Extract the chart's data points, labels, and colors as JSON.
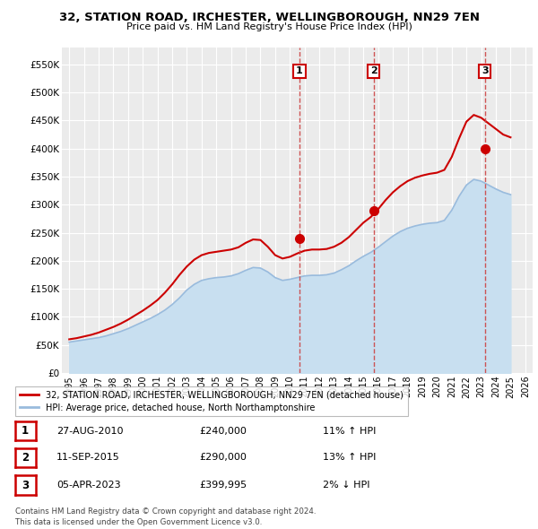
{
  "title": "32, STATION ROAD, IRCHESTER, WELLINGBOROUGH, NN29 7EN",
  "subtitle": "Price paid vs. HM Land Registry's House Price Index (HPI)",
  "ylabel_ticks": [
    "£0",
    "£50K",
    "£100K",
    "£150K",
    "£200K",
    "£250K",
    "£300K",
    "£350K",
    "£400K",
    "£450K",
    "£500K",
    "£550K"
  ],
  "ytick_values": [
    0,
    50000,
    100000,
    150000,
    200000,
    250000,
    300000,
    350000,
    400000,
    450000,
    500000,
    550000
  ],
  "ylim": [
    0,
    580000
  ],
  "background_color": "#ffffff",
  "plot_bg_color": "#ebebeb",
  "grid_color": "#ffffff",
  "red_line_color": "#cc0000",
  "blue_line_color": "#99bbdd",
  "blue_fill_color": "#c8dff0",
  "purchase_dates": [
    2010.65,
    2015.69,
    2023.26
  ],
  "purchase_prices": [
    240000,
    290000,
    399995
  ],
  "purchase_labels": [
    "1",
    "2",
    "3"
  ],
  "vline_color": "#cc4444",
  "legend_label_red": "32, STATION ROAD, IRCHESTER, WELLINGBOROUGH, NN29 7EN (detached house)",
  "legend_label_blue": "HPI: Average price, detached house, North Northamptonshire",
  "table_data": [
    [
      "1",
      "27-AUG-2010",
      "£240,000",
      "11% ↑ HPI"
    ],
    [
      "2",
      "11-SEP-2015",
      "£290,000",
      "13% ↑ HPI"
    ],
    [
      "3",
      "05-APR-2023",
      "£399,995",
      "2% ↓ HPI"
    ]
  ],
  "footer": "Contains HM Land Registry data © Crown copyright and database right 2024.\nThis data is licensed under the Open Government Licence v3.0.",
  "hpi_years": [
    1995.0,
    1995.5,
    1996.0,
    1996.5,
    1997.0,
    1997.5,
    1998.0,
    1998.5,
    1999.0,
    1999.5,
    2000.0,
    2000.5,
    2001.0,
    2001.5,
    2002.0,
    2002.5,
    2003.0,
    2003.5,
    2004.0,
    2004.5,
    2005.0,
    2005.5,
    2006.0,
    2006.5,
    2007.0,
    2007.5,
    2008.0,
    2008.5,
    2009.0,
    2009.5,
    2010.0,
    2010.5,
    2011.0,
    2011.5,
    2012.0,
    2012.5,
    2013.0,
    2013.5,
    2014.0,
    2014.5,
    2015.0,
    2015.5,
    2016.0,
    2016.5,
    2017.0,
    2017.5,
    2018.0,
    2018.5,
    2019.0,
    2019.5,
    2020.0,
    2020.5,
    2021.0,
    2021.5,
    2022.0,
    2022.5,
    2023.0,
    2023.5,
    2024.0,
    2024.5,
    2025.0
  ],
  "hpi_values": [
    55000,
    57000,
    59000,
    61000,
    63000,
    66000,
    70000,
    74000,
    79000,
    85000,
    91000,
    97000,
    104000,
    112000,
    122000,
    134000,
    148000,
    158000,
    165000,
    168000,
    170000,
    171000,
    173000,
    177000,
    183000,
    188000,
    187000,
    180000,
    170000,
    165000,
    167000,
    170000,
    173000,
    174000,
    174000,
    175000,
    178000,
    184000,
    191000,
    200000,
    208000,
    215000,
    224000,
    234000,
    244000,
    252000,
    258000,
    262000,
    265000,
    267000,
    268000,
    272000,
    290000,
    315000,
    335000,
    345000,
    342000,
    335000,
    328000,
    322000,
    318000
  ],
  "red_years": [
    1995.0,
    1995.5,
    1996.0,
    1996.5,
    1997.0,
    1997.5,
    1998.0,
    1998.5,
    1999.0,
    1999.5,
    2000.0,
    2000.5,
    2001.0,
    2001.5,
    2002.0,
    2002.5,
    2003.0,
    2003.5,
    2004.0,
    2004.5,
    2005.0,
    2005.5,
    2006.0,
    2006.5,
    2007.0,
    2007.5,
    2008.0,
    2008.5,
    2009.0,
    2009.5,
    2010.0,
    2010.5,
    2011.0,
    2011.5,
    2012.0,
    2012.5,
    2013.0,
    2013.5,
    2014.0,
    2014.5,
    2015.0,
    2015.5,
    2016.0,
    2016.5,
    2017.0,
    2017.5,
    2018.0,
    2018.5,
    2019.0,
    2019.5,
    2020.0,
    2020.5,
    2021.0,
    2021.5,
    2022.0,
    2022.5,
    2023.0,
    2023.5,
    2024.0,
    2024.5,
    2025.0
  ],
  "red_values": [
    60000,
    62000,
    65000,
    68000,
    72000,
    77000,
    82000,
    88000,
    95000,
    103000,
    111000,
    120000,
    130000,
    143000,
    158000,
    175000,
    190000,
    202000,
    210000,
    214000,
    216000,
    218000,
    220000,
    224000,
    232000,
    238000,
    237000,
    225000,
    210000,
    204000,
    207000,
    213000,
    218000,
    220000,
    220000,
    221000,
    225000,
    232000,
    242000,
    255000,
    268000,
    278000,
    292000,
    308000,
    322000,
    333000,
    342000,
    348000,
    352000,
    355000,
    357000,
    362000,
    385000,
    418000,
    448000,
    460000,
    455000,
    445000,
    435000,
    425000,
    420000
  ],
  "xmin": 1994.5,
  "xmax": 2026.5,
  "xtick_years": [
    1995,
    1996,
    1997,
    1998,
    1999,
    2000,
    2001,
    2002,
    2003,
    2004,
    2005,
    2006,
    2007,
    2008,
    2009,
    2010,
    2011,
    2012,
    2013,
    2014,
    2015,
    2016,
    2017,
    2018,
    2019,
    2020,
    2021,
    2022,
    2023,
    2024,
    2025,
    2026
  ]
}
